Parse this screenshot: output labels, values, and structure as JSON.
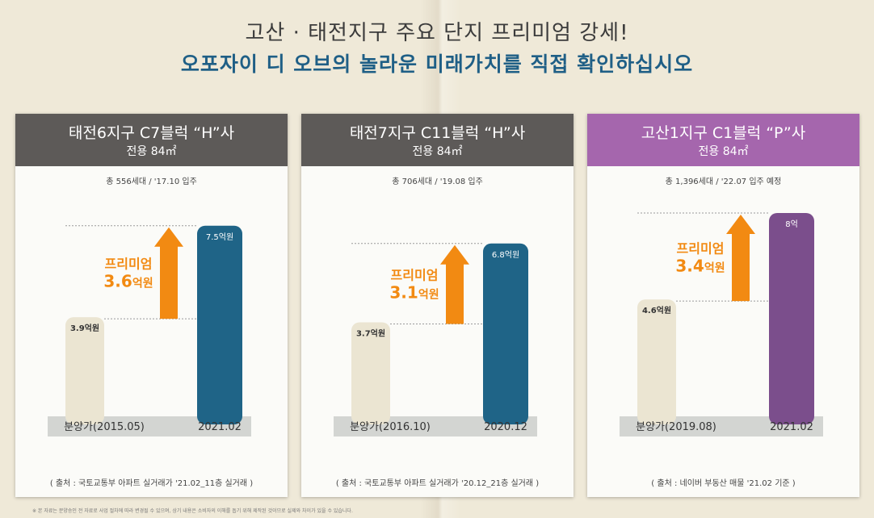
{
  "headline": {
    "line1": "고산 · 태전지구 주요 단지 프리미엄 강세!",
    "line2": "오포자이 디 오브의 놀라운 미래가치를 직접 확인하십시오"
  },
  "colors": {
    "card_header_gray": "#5d5a58",
    "card_header_purple": "#a566ad",
    "presale_bar": "#ebe5d2",
    "current_bar_blue": "#1f6487",
    "current_bar_purple": "#7b4e8c",
    "arrow_orange": "#f28a12",
    "premium_text": "#f28a12",
    "base_strip": "#d3d5d2"
  },
  "chart_data": [
    {
      "type": "bar",
      "title": "태전6지구 C7블럭 “H”사",
      "subtitle": "전용 84㎡",
      "info": "총 556세대 / '17.10 입주",
      "categories": [
        "분양가(2015.05)",
        "2021.02"
      ],
      "values": [
        3.9,
        7.5
      ],
      "value_labels": [
        "3.9억원",
        "7.5억원"
      ],
      "premium": {
        "label": "프리미엄",
        "value_number": "3.6",
        "value_unit": "억원"
      },
      "source": "( 출처 : 국토교통부 아파트 실거래가 '21.02_11층 실거래 )"
    },
    {
      "type": "bar",
      "title": "태전7지구 C11블럭 “H”사",
      "subtitle": "전용 84㎡",
      "info": "총 706세대 / '19.08 입주",
      "categories": [
        "분양가(2016.10)",
        "2020.12"
      ],
      "values": [
        3.7,
        6.8
      ],
      "value_labels": [
        "3.7억원",
        "6.8억원"
      ],
      "premium": {
        "label": "프리미엄",
        "value_number": "3.1",
        "value_unit": "억원"
      },
      "source": "( 출처 : 국토교통부 아파트 실거래가 '20.12_21층 실거래 )"
    },
    {
      "type": "bar",
      "title": "고산1지구 C1블럭 “P”사",
      "subtitle": "전용 84㎡",
      "info": "총 1,396세대 / '22.07 입주 예정",
      "categories": [
        "분양가(2019.08)",
        "2021.02"
      ],
      "values": [
        4.6,
        8
      ],
      "value_labels": [
        "4.6억원",
        "8억"
      ],
      "premium": {
        "label": "프리미엄",
        "value_number": "3.4",
        "value_unit": "억원"
      },
      "source": "( 출처 : 네이버 부동산 매물 '21.02 기준 )"
    }
  ],
  "footnote": "※ 본 자료는 분양승인 전 자료로 사업 절차에 따라 변경될 수 있으며, 상기 내용은 소비자의 이해를 돕기 위해 제작된 것이므로 실제와 차이가 있을 수 있습니다."
}
